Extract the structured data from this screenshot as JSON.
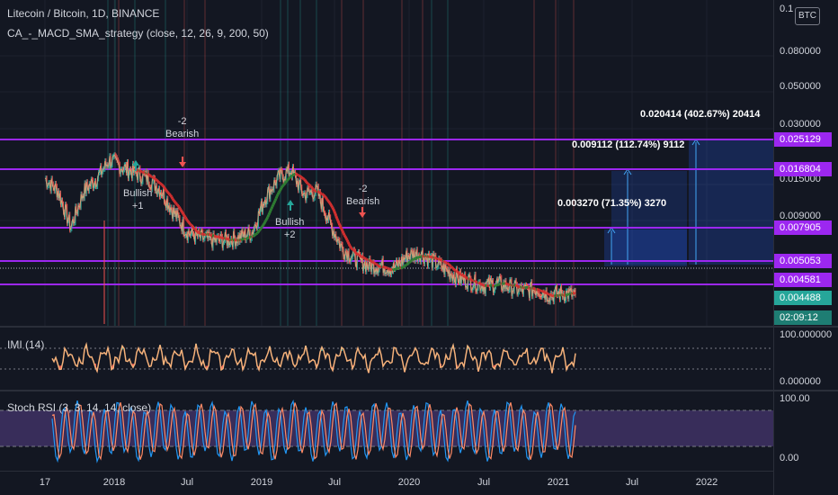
{
  "header": {
    "symbol_title": "Litecoin / Bitcoin, 1D, BINANCE",
    "strategy_title": "CA_-_MACD_SMA_strategy (close, 12, 26, 9, 200, 50)"
  },
  "currency_button": "BTC",
  "price_axis": {
    "ticks": [
      "0.080000",
      "0.050000",
      "0.030000",
      "0.015000",
      "0.009000"
    ],
    "top_partial": "0.1"
  },
  "horizontal_levels": [
    "0.025129",
    "0.016804",
    "0.007905",
    "0.005053",
    "0.004581"
  ],
  "last_price": "0.004488",
  "countdown": "02:09:12",
  "signals": [
    {
      "line1": "-2",
      "line2": "Bearish"
    },
    {
      "line1": "Bullish",
      "line2": "+1"
    },
    {
      "line1": "Bullish",
      "line2": "+2"
    },
    {
      "line1": "-2",
      "line2": "Bearish"
    }
  ],
  "measurements": [
    "0.020414 (402.67%) 20414",
    "0.009112 (112.74%) 9112",
    "0.003270 (71.35%) 3270"
  ],
  "imi": {
    "label": "IMI (14)",
    "axis_top": "100.000000",
    "axis_bottom": "0.000000"
  },
  "stoch": {
    "label": "Stoch RSI (3, 3, 14, 14, close)",
    "axis_top": "100.00",
    "axis_bottom": "0.00"
  },
  "time_axis": [
    "17",
    "2018",
    "Jul",
    "2019",
    "Jul",
    "2020",
    "Jul",
    "2021",
    "Jul",
    "2022"
  ],
  "colors": {
    "background": "#131722",
    "level_line": "#9c27f0",
    "bull": "#26a69a",
    "bear": "#ef5350",
    "sma_bear": "#d32f2f",
    "sma_bull": "#2e7d32",
    "projection": "#2962ff"
  },
  "chart_data": {
    "type": "line",
    "title": "Litecoin / Bitcoin, 1D, BINANCE",
    "y_scale": "log",
    "x": [
      "2017-09",
      "2017-10",
      "2017-11",
      "2017-12",
      "2018-01",
      "2018-02",
      "2018-03",
      "2018-04",
      "2018-05",
      "2018-06",
      "2018-07",
      "2018-08",
      "2018-09",
      "2018-10",
      "2018-11",
      "2018-12",
      "2019-01",
      "2019-02",
      "2019-03",
      "2019-04",
      "2019-05",
      "2019-06",
      "2019-07",
      "2019-08",
      "2019-09",
      "2019-10",
      "2019-11",
      "2019-12",
      "2020-01",
      "2020-02",
      "2020-03",
      "2020-04",
      "2020-05",
      "2020-06",
      "2020-07",
      "2020-08",
      "2020-09",
      "2020-10",
      "2020-11",
      "2020-12",
      "2021-01",
      "2021-02"
    ],
    "series": [
      {
        "values": [
          0.016,
          0.014,
          0.0095,
          0.014,
          0.016,
          0.0195,
          0.018,
          0.017,
          0.016,
          0.014,
          0.011,
          0.009,
          0.0085,
          0.0082,
          0.0083,
          0.0085,
          0.009,
          0.013,
          0.016,
          0.0175,
          0.0135,
          0.014,
          0.01,
          0.0075,
          0.0068,
          0.0063,
          0.0063,
          0.0061,
          0.007,
          0.0072,
          0.0066,
          0.006,
          0.0055,
          0.0053,
          0.0051,
          0.0052,
          0.005,
          0.0048,
          0.0049,
          0.0046,
          0.0047,
          0.0046
        ]
      }
    ],
    "ylim": [
      0.0035,
      0.1
    ]
  }
}
